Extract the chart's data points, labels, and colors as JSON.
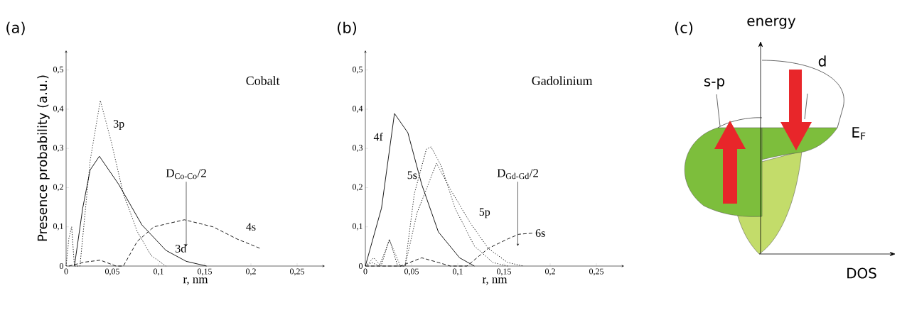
{
  "chart_data": [
    {
      "type": "line",
      "title": "(a)",
      "xlabel": "r, nm",
      "ylabel": "Presence probability (a.u.)",
      "xlim": [
        0,
        0.28
      ],
      "ylim": [
        0,
        0.55
      ],
      "xticks": [
        0,
        {
          "value": 0.05,
          "label": "0,05"
        },
        {
          "value": 0.1,
          "label": "0,1"
        },
        {
          "value": 0.15,
          "label": "0,15"
        },
        {
          "value": 0.2,
          "label": "0,2"
        },
        {
          "value": 0.25,
          "label": "0,25"
        }
      ],
      "yticks": [
        0,
        {
          "value": 0.1,
          "label": "0,1"
        },
        {
          "value": 0.2,
          "label": "0,2"
        },
        {
          "value": 0.3,
          "label": "0,3"
        },
        {
          "value": 0.4,
          "label": "0,4"
        },
        {
          "value": 0.5,
          "label": "0,5"
        }
      ],
      "series": [
        {
          "name": "3p",
          "color": "#000000",
          "line_style": "dotted",
          "x": [
            0,
            0.003,
            0.006,
            0.009,
            0.015,
            0.026,
            0.037,
            0.049,
            0.062,
            0.077,
            0.092,
            0.108
          ],
          "values": [
            0,
            0.07,
            0.1,
            0,
            0,
            0.268,
            0.422,
            0.316,
            0.184,
            0.088,
            0.027,
            0
          ]
        },
        {
          "name": "3d",
          "color": "#000000",
          "line_style": "solid",
          "x": [
            0.009,
            0.018,
            0.026,
            0.036,
            0.057,
            0.082,
            0.108,
            0.13,
            0.152
          ],
          "values": [
            0,
            0.148,
            0.245,
            0.28,
            0.208,
            0.105,
            0.04,
            0.012,
            0
          ]
        },
        {
          "name": "4s",
          "color": "#000000",
          "line_style": "dashed",
          "x": [
            0.003,
            0.02,
            0.037,
            0.054,
            0.062,
            0.077,
            0.095,
            0.128,
            0.159,
            0.185,
            0.21
          ],
          "values": [
            0,
            0.01,
            0.015,
            0,
            0,
            0.063,
            0.1,
            0.118,
            0.1,
            0.069,
            0.045
          ]
        }
      ],
      "annotations": [
        "Cobalt",
        "D$_{Co-Co}$/2"
      ]
    },
    {
      "type": "line",
      "title": "(b)",
      "xlabel": "r, nm",
      "xlim": [
        0,
        0.28
      ],
      "ylim": [
        0,
        0.55
      ],
      "xticks": [
        0,
        {
          "value": 0.05,
          "label": "0,05"
        },
        {
          "value": 0.1,
          "label": "0,1"
        },
        {
          "value": 0.15,
          "label": "0,15"
        },
        {
          "value": 0.2,
          "label": "0,2"
        },
        {
          "value": 0.25,
          "label": "0,25"
        }
      ],
      "yticks": [
        0,
        {
          "value": 0.1,
          "label": "0,1"
        },
        {
          "value": 0.2,
          "label": "0,2"
        },
        {
          "value": 0.3,
          "label": "0,3"
        },
        {
          "value": 0.4,
          "label": "0,4"
        },
        {
          "value": 0.5,
          "label": "0,5"
        }
      ],
      "series": [
        {
          "name": "4f",
          "color": "#000000",
          "line_style": "solid",
          "x": [
            0,
            0.0175,
            0.0315,
            0.046,
            0.061,
            0.079,
            0.102,
            0.118
          ],
          "values": [
            0,
            0.148,
            0.389,
            0.34,
            0.208,
            0.087,
            0.021,
            0
          ]
        },
        {
          "name": "5s",
          "color": "#000000",
          "line_style": "dotted",
          "x": [
            0,
            0.009,
            0.017,
            0.026,
            0.035,
            0.043,
            0.053,
            0.066,
            0.071,
            0.082,
            0.097,
            0.118,
            0.138,
            0.154
          ],
          "values": [
            0,
            0.021,
            0,
            0.069,
            0,
            0,
            0.184,
            0.298,
            0.304,
            0.256,
            0.148,
            0.051,
            0.009,
            0
          ]
        },
        {
          "name": "5p",
          "color": "#000000",
          "line_style": "dotted",
          "x": [
            0,
            0.007,
            0.015,
            0.026,
            0.038,
            0.043,
            0.056,
            0.077,
            0.092,
            0.113,
            0.133,
            0.154,
            0.171
          ],
          "values": [
            0,
            0.009,
            0,
            0.066,
            0,
            0,
            0.136,
            0.262,
            0.196,
            0.112,
            0.045,
            0.009,
            0
          ]
        },
        {
          "name": "6s",
          "color": "#000000",
          "line_style": "dashed",
          "x": [
            0,
            0.017,
            0.038,
            0.061,
            0.079,
            0.092,
            0.11,
            0.133,
            0.154,
            0.166,
            0.181
          ],
          "values": [
            0,
            0,
            0,
            0.021,
            0.009,
            0,
            0,
            0.045,
            0.069,
            0.081,
            0.084
          ]
        }
      ],
      "annotations": [
        "Gadolinium",
        "D$_{Gd-Gd}$/2"
      ]
    },
    {
      "type": "other",
      "title": "(c)",
      "annotations": [
        "energy",
        "d",
        "s-p",
        "E$_{F}$",
        "DOS"
      ]
    }
  ]
}
